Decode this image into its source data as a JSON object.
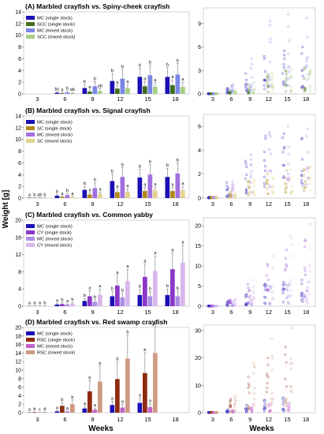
{
  "figure": {
    "y_axis_label": "Weight [g]",
    "x_axis_label": "Weeks"
  },
  "chart_data": [
    {
      "type": "bar",
      "panel": "A",
      "title": "(A) Marbled crayfish vs. Spiny-cheek crayfish",
      "categories": [
        "3",
        "6",
        "9",
        "12",
        "15",
        "18"
      ],
      "ylim": [
        0,
        14
      ],
      "yticks": [
        0,
        2,
        4,
        6,
        8,
        10,
        12,
        14
      ],
      "legend_position": "top-left",
      "series": [
        {
          "name": "MC (single stock)",
          "color": "#1a0fb4",
          "values": [
            0,
            0.2,
            1.0,
            2.2,
            2.9,
            2.9
          ],
          "errors": [
            0,
            0.15,
            0.6,
            1.3,
            1.5,
            1.6
          ]
        },
        {
          "name": "SCC (single stock)",
          "color": "#3e6e1c",
          "values": [
            0,
            0.1,
            0.4,
            0.9,
            1.3,
            1.5
          ],
          "errors": [
            0,
            0.1,
            0.3,
            0.6,
            0.8,
            0.9
          ]
        },
        {
          "name": "MC (mixed stock)",
          "color": "#7b86e6",
          "values": [
            0,
            0.25,
            1.3,
            2.6,
            3.2,
            3.3
          ],
          "errors": [
            0,
            0.2,
            0.8,
            1.6,
            1.7,
            1.9
          ]
        },
        {
          "name": "SCC (mixed stock)",
          "color": "#a5cf83",
          "values": [
            0,
            0.15,
            0.5,
            1.0,
            1.2,
            1.2
          ],
          "errors": [
            0,
            0.1,
            0.4,
            0.6,
            0.7,
            0.8
          ]
        }
      ],
      "letters": [
        [
          "",
          "bc",
          "b",
          "b",
          "b",
          "b"
        ],
        [
          "",
          "a",
          "a",
          "a",
          "a",
          "a"
        ],
        [
          "",
          "b",
          "b",
          "b",
          "b",
          "b"
        ],
        [
          "",
          "ab",
          "ab",
          "a",
          "a",
          "a"
        ]
      ]
    },
    {
      "type": "scatter",
      "panel": "A",
      "x_categories": [
        "3",
        "6",
        "9",
        "12",
        "15",
        "18"
      ],
      "ylim": [
        0,
        11
      ],
      "yticks": [
        0,
        3,
        6,
        9
      ],
      "series": [
        {
          "name": "MC (single stock)",
          "color": "#1a0fb4",
          "ranges": [
            [
              0,
              0.05
            ],
            [
              0.1,
              0.7
            ],
            [
              0.3,
              2.6
            ],
            [
              0.6,
              4.8
            ],
            [
              0.8,
              5.5
            ],
            [
              0.8,
              6.0
            ]
          ]
        },
        {
          "name": "SCC (single stock)",
          "color": "#3e6e1c",
          "ranges": [
            [
              0,
              0.05
            ],
            [
              0.05,
              0.4
            ],
            [
              0.1,
              1.2
            ],
            [
              0.2,
              2.5
            ],
            [
              0.3,
              3.0
            ],
            [
              0.3,
              3.4
            ]
          ]
        },
        {
          "name": "MC (mixed stock)",
          "color": "#7b86e6",
          "ranges": [
            [
              0,
              0.05
            ],
            [
              0.1,
              1.2
            ],
            [
              0.3,
              4.5
            ],
            [
              0.7,
              9.3
            ],
            [
              0.9,
              10.2
            ],
            [
              0.9,
              9.7
            ]
          ]
        },
        {
          "name": "SCC (mixed stock)",
          "color": "#a5cf83",
          "ranges": [
            [
              0,
              0.05
            ],
            [
              0.05,
              0.5
            ],
            [
              0.1,
              1.5
            ],
            [
              0.2,
              2.7
            ],
            [
              0.3,
              3.2
            ],
            [
              0.3,
              3.0
            ]
          ]
        }
      ]
    },
    {
      "type": "bar",
      "panel": "B",
      "title": "(B) Marbled crayfish vs. Signal crayfish",
      "categories": [
        "3",
        "6",
        "9",
        "12",
        "15",
        "18"
      ],
      "ylim": [
        0,
        14
      ],
      "yticks": [
        0,
        2,
        4,
        6,
        8,
        10,
        12,
        14
      ],
      "legend_position": "top-left",
      "series": [
        {
          "name": "MC (single stock)",
          "color": "#1a0fb4",
          "values": [
            0.05,
            0.4,
            1.4,
            2.9,
            3.5,
            3.6
          ],
          "errors": [
            0.02,
            0.2,
            0.6,
            1.2,
            1.4,
            1.5
          ]
        },
        {
          "name": "SC (single stock)",
          "color": "#b28a1d",
          "values": [
            0.05,
            0.2,
            0.6,
            1.0,
            1.2,
            1.2
          ],
          "errors": [
            0.02,
            0.1,
            0.3,
            0.5,
            0.6,
            0.6
          ]
        },
        {
          "name": "MC (mixed stock)",
          "color": "#a16fe0",
          "values": [
            0.05,
            0.5,
            1.7,
            3.6,
            4.0,
            4.2
          ],
          "errors": [
            0.02,
            0.3,
            0.9,
            1.6,
            1.7,
            1.8
          ]
        },
        {
          "name": "SC (mixed stock)",
          "color": "#e3d38e",
          "values": [
            0.05,
            0.2,
            0.7,
            1.1,
            1.3,
            1.3
          ],
          "errors": [
            0.02,
            0.1,
            0.3,
            0.5,
            0.6,
            0.7
          ]
        }
      ],
      "letters": [
        [
          "a",
          "b",
          "b",
          "b",
          "b",
          "b"
        ],
        [
          "b",
          "a",
          "a",
          "a",
          "a",
          "a"
        ],
        [
          "ab",
          "b",
          "b",
          "b",
          "b",
          "b"
        ],
        [
          "b",
          "a",
          "a",
          "a",
          "a",
          "a"
        ]
      ]
    },
    {
      "type": "scatter",
      "panel": "B",
      "x_categories": [
        "3",
        "6",
        "9",
        "12",
        "15",
        "18"
      ],
      "ylim": [
        0,
        7
      ],
      "yticks": [
        0,
        2,
        4,
        6
      ],
      "series": [
        {
          "name": "MC (single stock)",
          "color": "#1a0fb4",
          "ranges": [
            [
              0,
              0.1
            ],
            [
              0.1,
              1.3
            ],
            [
              0.4,
              3.1
            ],
            [
              0.8,
              5.2
            ],
            [
              1.0,
              5.4
            ],
            [
              1.1,
              5.0
            ]
          ]
        },
        {
          "name": "SC (single stock)",
          "color": "#b28a1d",
          "ranges": [
            [
              0,
              0.1
            ],
            [
              0.05,
              0.5
            ],
            [
              0.2,
              1.4
            ],
            [
              0.3,
              2.0
            ],
            [
              0.4,
              2.3
            ],
            [
              0.4,
              2.4
            ]
          ]
        },
        {
          "name": "MC (mixed stock)",
          "color": "#a16fe0",
          "ranges": [
            [
              0,
              0.1
            ],
            [
              0.1,
              1.4
            ],
            [
              0.4,
              3.6
            ],
            [
              0.9,
              5.5
            ],
            [
              1.0,
              6.0
            ],
            [
              1.1,
              5.8
            ]
          ]
        },
        {
          "name": "SC (mixed stock)",
          "color": "#e3d38e",
          "ranges": [
            [
              0,
              0.1
            ],
            [
              0.05,
              0.5
            ],
            [
              0.2,
              1.5
            ],
            [
              0.3,
              2.1
            ],
            [
              0.4,
              2.4
            ],
            [
              0.4,
              2.6
            ]
          ]
        }
      ]
    },
    {
      "type": "bar",
      "panel": "C",
      "title": "(C) Marbled crayfish vs. Common yabby",
      "categories": [
        "3",
        "6",
        "9",
        "12",
        "15",
        "18"
      ],
      "ylim": [
        0,
        20
      ],
      "yticks": [
        0,
        4,
        8,
        12,
        16,
        20
      ],
      "legend_position": "top-left",
      "series": [
        {
          "name": "MC (single stock)",
          "color": "#1a0fb4",
          "values": [
            0.05,
            0.4,
            1.2,
            2.3,
            2.6,
            2.6
          ],
          "errors": [
            0.02,
            0.2,
            0.6,
            1.1,
            1.3,
            1.4
          ]
        },
        {
          "name": "CY (single stock)",
          "color": "#8b37c9",
          "values": [
            0.05,
            0.5,
            2.3,
            4.8,
            6.8,
            8.6
          ],
          "errors": [
            0.02,
            0.3,
            1.3,
            2.4,
            3.0,
            3.8
          ]
        },
        {
          "name": "MC (mixed stock)",
          "color": "#a98ee6",
          "values": [
            0.05,
            0.35,
            1.0,
            2.0,
            2.3,
            2.3
          ],
          "errors": [
            0.02,
            0.2,
            0.5,
            1.0,
            1.1,
            1.2
          ]
        },
        {
          "name": "CY (mixed stock)",
          "color": "#d9b6ec",
          "values": [
            0.05,
            0.6,
            2.6,
            5.8,
            8.2,
            10.1
          ],
          "errors": [
            0.02,
            0.3,
            1.4,
            2.8,
            3.5,
            4.1
          ]
        }
      ],
      "letters": [
        [
          "a",
          "a",
          "b",
          "b",
          "b",
          "b"
        ],
        [
          "a",
          "b",
          "a",
          "a",
          "a",
          "a"
        ],
        [
          "a",
          "a",
          "b",
          "b",
          "b",
          "b"
        ],
        [
          "b",
          "b",
          "a",
          "a",
          "a",
          "a"
        ]
      ]
    },
    {
      "type": "scatter",
      "panel": "C",
      "x_categories": [
        "3",
        "6",
        "9",
        "12",
        "15",
        "18"
      ],
      "ylim": [
        0,
        22
      ],
      "yticks": [
        0,
        5,
        10,
        15,
        20
      ],
      "series": [
        {
          "name": "MC (single stock)",
          "color": "#1a0fb4",
          "ranges": [
            [
              0,
              0.1
            ],
            [
              0.1,
              1.2
            ],
            [
              0.3,
              3.0
            ],
            [
              0.6,
              5.5
            ],
            [
              0.8,
              6.0
            ],
            [
              0.8,
              6.5
            ]
          ]
        },
        {
          "name": "CY (single stock)",
          "color": "#8b37c9",
          "ranges": [
            [
              0,
              0.1
            ],
            [
              0.2,
              1.5
            ],
            [
              0.6,
              5.5
            ],
            [
              1.2,
              10.5
            ],
            [
              1.8,
              14.0
            ],
            [
              2.2,
              16.5
            ]
          ]
        },
        {
          "name": "MC (mixed stock)",
          "color": "#a98ee6",
          "ranges": [
            [
              0,
              0.1
            ],
            [
              0.1,
              1.0
            ],
            [
              0.3,
              2.6
            ],
            [
              0.5,
              5.0
            ],
            [
              0.7,
              5.5
            ],
            [
              0.7,
              6.0
            ]
          ]
        },
        {
          "name": "CY (mixed stock)",
          "color": "#d9b6ec",
          "ranges": [
            [
              0,
              0.1
            ],
            [
              0.2,
              1.7
            ],
            [
              0.7,
              6.5
            ],
            [
              1.4,
              12.5
            ],
            [
              2.0,
              17.5
            ],
            [
              2.5,
              20.5
            ]
          ]
        }
      ]
    },
    {
      "type": "bar",
      "panel": "D",
      "title": "(D) Marbled crayfish vs. Red swamp crayfish",
      "categories": [
        "3",
        "6",
        "9",
        "12",
        "15",
        "18"
      ],
      "ylim": [
        0,
        20
      ],
      "yticks": [
        0,
        2,
        4,
        6,
        8,
        10,
        12,
        14,
        16,
        18,
        20
      ],
      "legend_position": "top-left",
      "series": [
        {
          "name": "MC (single stock)",
          "color": "#1a0fb4",
          "values": [
            0.05,
            0.3,
            1.0,
            1.8,
            2.3,
            0
          ],
          "errors": [
            0.02,
            0.2,
            0.5,
            0.9,
            1.1,
            0
          ]
        },
        {
          "name": "RSC (single stock)",
          "color": "#8e2a10",
          "values": [
            0.1,
            1.6,
            5.0,
            7.9,
            9.3,
            0
          ],
          "errors": [
            0.05,
            0.8,
            2.5,
            4.0,
            4.8,
            0
          ]
        },
        {
          "name": "MC (mixed stock)",
          "color": "#c062c9",
          "values": [
            0.05,
            0.25,
            0.7,
            1.2,
            1.3,
            0
          ],
          "errors": [
            0.02,
            0.15,
            0.4,
            0.7,
            0.8,
            0
          ]
        },
        {
          "name": "RSC (mixed stock)",
          "color": "#cf9a83",
          "values": [
            0.1,
            2.0,
            7.3,
            12.7,
            14.0,
            0
          ],
          "errors": [
            0.05,
            1.0,
            3.5,
            5.5,
            6.3,
            0
          ]
        }
      ],
      "letters": [
        [
          "a",
          "a",
          "a",
          "a",
          "a",
          ""
        ],
        [
          "b",
          "b",
          "b",
          "b",
          "b",
          ""
        ],
        [
          "c",
          "a",
          "a",
          "a",
          "a",
          ""
        ],
        [
          "d",
          "b",
          "b",
          "b",
          "b",
          ""
        ]
      ]
    },
    {
      "type": "scatter",
      "panel": "D",
      "x_categories": [
        "3",
        "6",
        "9",
        "12",
        "15",
        "18"
      ],
      "ylim": [
        0,
        32
      ],
      "yticks": [
        0,
        10,
        20,
        30
      ],
      "series": [
        {
          "name": "MC (single stock)",
          "color": "#1a0fb4",
          "ranges": [
            [
              0,
              0.1
            ],
            [
              0.1,
              1.2
            ],
            [
              0.3,
              2.8
            ],
            [
              0.5,
              4.5
            ],
            [
              0.7,
              5.5
            ],
            null
          ]
        },
        {
          "name": "RSC (single stock)",
          "color": "#8e2a10",
          "ranges": [
            [
              0,
              0.2
            ],
            [
              0.3,
              5.0
            ],
            [
              1.0,
              13.0
            ],
            [
              2.0,
              20.0
            ],
            [
              2.5,
              24.0
            ],
            null
          ]
        },
        {
          "name": "MC (mixed stock)",
          "color": "#c062c9",
          "ranges": [
            [
              0,
              0.1
            ],
            [
              0.1,
              0.8
            ],
            [
              0.2,
              2.0
            ],
            [
              0.4,
              3.2
            ],
            [
              0.5,
              3.5
            ],
            null
          ]
        },
        {
          "name": "RSC (mixed stock)",
          "color": "#cf9a83",
          "ranges": [
            [
              0,
              0.2
            ],
            [
              0.4,
              6.0
            ],
            [
              1.5,
              18.0
            ],
            [
              3.0,
              27.0
            ],
            [
              3.5,
              31.0
            ],
            null
          ]
        }
      ]
    }
  ]
}
